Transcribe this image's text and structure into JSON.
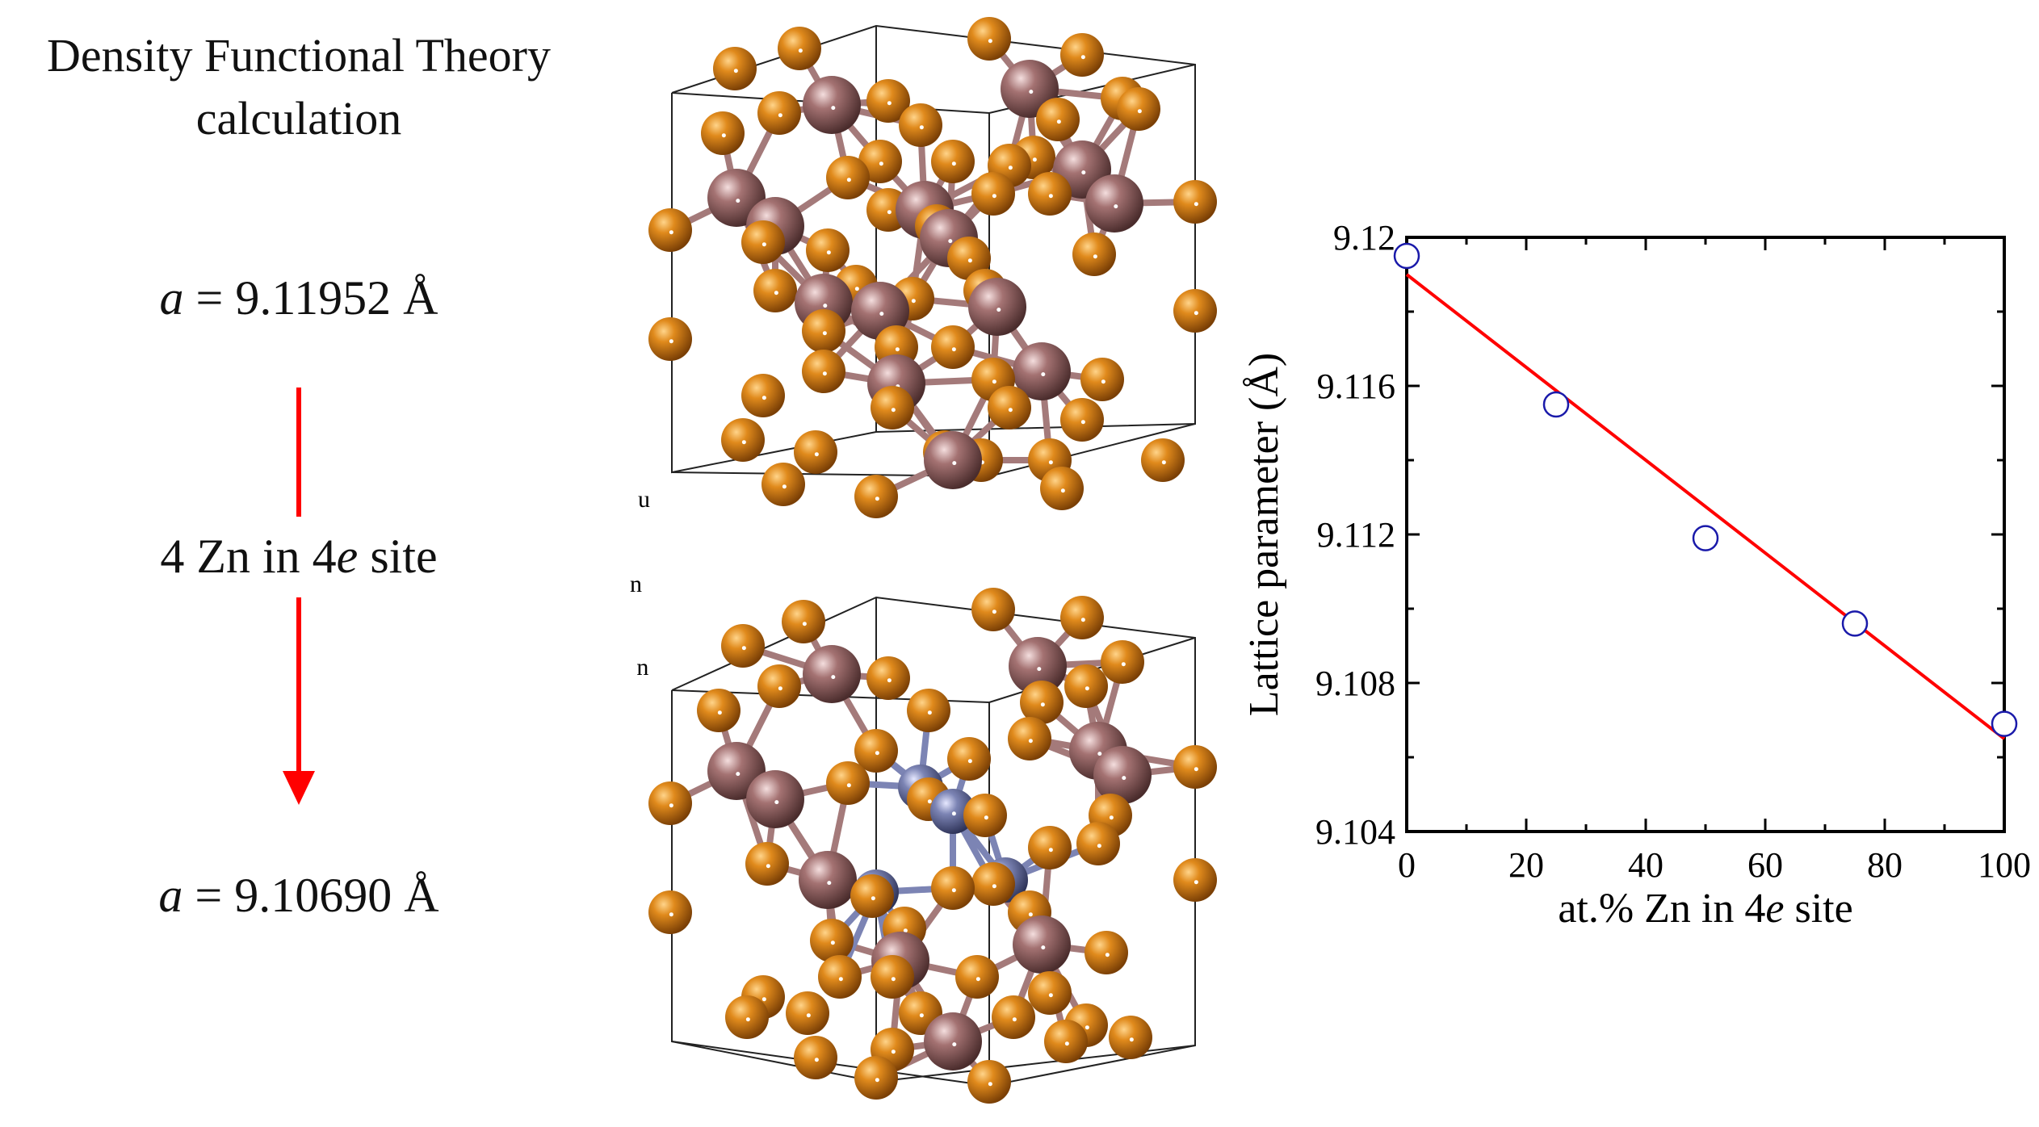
{
  "left_panel": {
    "title_line1": "Density Functional Theory",
    "title_line2": "calculation",
    "lattice_symbol": "a",
    "lattice_before": " = 9.11952 Å",
    "substitution_prefix": "4 Zn in 4",
    "substitution_site": "e",
    "substitution_suffix": " site",
    "lattice_after": " = 9.10690 Å",
    "arrow_color": "#ff0000"
  },
  "legend": {
    "items": [
      {
        "label": "Cu",
        "color": "#d47a14"
      },
      {
        "label": "In",
        "color": "#9a6a6a"
      },
      {
        "label": "Zn",
        "color": "#6f78a8"
      }
    ]
  },
  "chart_data": {
    "type": "scatter",
    "xlabel_prefix": "at.% Zn in 4",
    "xlabel_italic": "e",
    "xlabel_suffix": " site",
    "ylabel": "Lattice parameter (Å)",
    "xlim": [
      0,
      100
    ],
    "ylim": [
      9.104,
      9.12
    ],
    "x_ticks": [
      0,
      20,
      40,
      60,
      80,
      100
    ],
    "x_tick_labels": [
      "0",
      "20",
      "40",
      "60",
      "80",
      "100"
    ],
    "y_ticks": [
      9.104,
      9.108,
      9.112,
      9.116,
      9.12
    ],
    "y_tick_labels": [
      "9.104",
      "9.108",
      "9.112",
      "9.116",
      "9.12"
    ],
    "points": [
      {
        "x": 0,
        "y": 9.1195
      },
      {
        "x": 25,
        "y": 9.1155
      },
      {
        "x": 50,
        "y": 9.1119
      },
      {
        "x": 75,
        "y": 9.1096
      },
      {
        "x": 100,
        "y": 9.1069
      }
    ],
    "fit_line": {
      "x": [
        0,
        100
      ],
      "y": [
        9.119,
        9.1065
      ],
      "color": "#ff0000"
    },
    "marker_color": "#1a1aaa",
    "grid": false
  }
}
